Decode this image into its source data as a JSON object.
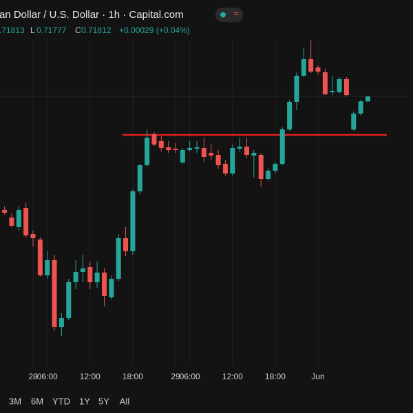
{
  "header": {
    "title": "an Dollar / U.S. Dollar · 1h · Capital.com",
    "badge": "≈",
    "quote": {
      "h": ".71813",
      "l_label": "L",
      "l": "0.71777",
      "c_label": "C",
      "c": "0.71812",
      "change": "+0.00029 (+0.04%)"
    }
  },
  "ranges": [
    "3M",
    "6M",
    "YTD",
    "1Y",
    "5Y",
    "All"
  ],
  "chart_data": {
    "type": "candlestick",
    "categories": [
      null,
      null,
      null,
      null,
      "28",
      null,
      "06:00",
      null,
      null,
      null,
      null,
      null,
      "12:00",
      null,
      null,
      null,
      null,
      null,
      "18:00",
      null,
      null,
      null,
      null,
      null,
      "29",
      null,
      "06:00",
      null,
      null,
      null,
      null,
      null,
      "12:00",
      null,
      null,
      null,
      null,
      null,
      "18:00",
      null,
      null,
      null,
      null,
      null,
      "Jun",
      null,
      null,
      null,
      null,
      null,
      null,
      null,
      null
    ],
    "open": [
      0.71152,
      0.71108,
      0.71052,
      0.71164,
      0.71012,
      0.7098,
      0.70772,
      0.7086,
      0.70472,
      0.70524,
      0.70732,
      0.70792,
      0.7082,
      0.70732,
      0.70788,
      0.70644,
      0.70752,
      0.70988,
      0.70912,
      0.7126,
      0.71412,
      0.71592,
      0.71552,
      0.71516,
      0.71508,
      0.71428,
      0.715,
      0.71508,
      0.71512,
      0.71484,
      0.71472,
      0.7142,
      0.71364,
      0.71508,
      0.7152,
      0.71468,
      0.71472,
      0.71332,
      0.7138,
      0.7142,
      0.7162,
      0.7178,
      0.71932,
      0.72028,
      0.7198,
      0.71952,
      0.71836,
      0.71836,
      0.71912,
      0.7162,
      0.71712,
      0.71783,
      null
    ],
    "high": [
      0.71172,
      0.71132,
      0.71172,
      0.71192,
      0.71032,
      0.70992,
      0.70912,
      0.70892,
      0.70552,
      0.70752,
      0.7086,
      0.70892,
      0.70852,
      0.70852,
      0.70812,
      0.70772,
      0.71012,
      0.71052,
      0.71272,
      0.7142,
      0.7162,
      0.71604,
      0.7158,
      0.71552,
      0.7154,
      0.71512,
      0.71552,
      0.71552,
      0.71572,
      0.71532,
      0.715,
      0.71444,
      0.71532,
      0.71572,
      0.71572,
      0.715,
      0.71484,
      0.71392,
      0.71432,
      0.71632,
      0.71792,
      0.71952,
      0.72092,
      0.7214,
      0.71992,
      0.71972,
      0.71932,
      0.71924,
      0.71924,
      0.71724,
      0.71792,
      0.71813,
      null
    ],
    "low": [
      0.71124,
      0.71052,
      0.71032,
      0.70992,
      0.7094,
      0.70764,
      0.70752,
      0.70452,
      0.7042,
      0.70512,
      0.70692,
      0.70732,
      0.70692,
      0.707,
      0.70592,
      0.70632,
      0.7074,
      0.70884,
      0.70892,
      0.71244,
      0.71404,
      0.71524,
      0.71492,
      0.71484,
      0.71484,
      0.7142,
      0.71492,
      0.71484,
      0.71432,
      0.71444,
      0.71392,
      0.71352,
      0.71352,
      0.71492,
      0.71452,
      0.7134,
      0.71284,
      0.71324,
      0.71364,
      0.71412,
      0.71612,
      0.71732,
      0.71924,
      0.71948,
      0.7194,
      0.7182,
      0.7182,
      0.71828,
      0.71812,
      0.71612,
      0.717,
      0.71777,
      null
    ],
    "close": [
      0.71136,
      0.7106,
      0.71152,
      0.71004,
      0.70988,
      0.70772,
      0.7086,
      0.70472,
      0.70524,
      0.70732,
      0.70792,
      0.70812,
      0.70732,
      0.70788,
      0.70652,
      0.70752,
      0.70988,
      0.70912,
      0.7126,
      0.71412,
      0.71572,
      0.71532,
      0.71512,
      0.715,
      0.715,
      0.715,
      0.71512,
      0.71516,
      0.7146,
      0.71468,
      0.71412,
      0.71364,
      0.71512,
      0.7152,
      0.71472,
      0.71484,
      0.71332,
      0.7138,
      0.7142,
      0.7162,
      0.7178,
      0.71932,
      0.72028,
      0.71956,
      0.71956,
      0.71824,
      0.71844,
      0.71912,
      0.7182,
      0.71712,
      0.71783,
      0.71812,
      null
    ],
    "up_color": "#26a69a",
    "down_color": "#ef5350",
    "hline": {
      "value": 0.71588,
      "color": "#e0201f"
    },
    "ylim": [
      0.70212,
      0.72372
    ],
    "grid": true
  }
}
